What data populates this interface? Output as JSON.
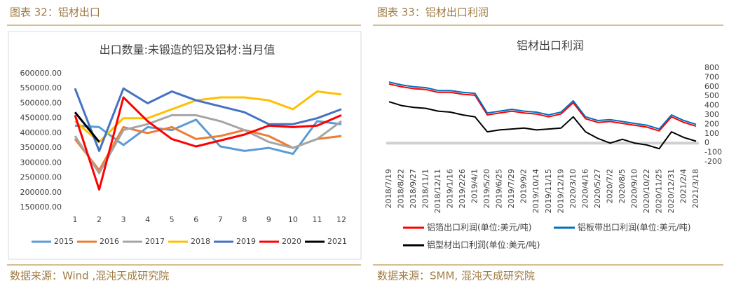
{
  "header_left": "图表 32：铝材出口",
  "header_right": "图表 33：铝材出口利润",
  "source_left": "数据来源：Wind ,混沌天成研究院",
  "source_right": "数据来源：SMM, 混沌天成研究院",
  "chart_data": [
    {
      "type": "line",
      "title": "出口数量:未锻造的铝及铝材:当月值",
      "categories": [
        "1",
        "2",
        "3",
        "4",
        "5",
        "6",
        "7",
        "8",
        "9",
        "10",
        "11",
        "12"
      ],
      "ylim": [
        150000,
        600000
      ],
      "yticks": [
        {
          "value": 150000,
          "label": "150000.00"
        },
        {
          "value": 200000,
          "label": "200000.00"
        },
        {
          "value": 250000,
          "label": "250000.00"
        },
        {
          "value": 300000,
          "label": "300000.00"
        },
        {
          "value": 350000,
          "label": "350000.00"
        },
        {
          "value": 400000,
          "label": "400000.00"
        },
        {
          "value": 450000,
          "label": "450000.00"
        },
        {
          "value": 500000,
          "label": "500000.00"
        },
        {
          "value": 550000,
          "label": "550000.00"
        },
        {
          "value": 600000,
          "label": "600000.00"
        }
      ],
      "grid": false,
      "legend": "bottom",
      "series": [
        {
          "name": "2015",
          "color": "#5b9bd5",
          "values": [
            425000,
            420000,
            360000,
            420000,
            410000,
            445000,
            355000,
            340000,
            350000,
            330000,
            440000,
            430000
          ]
        },
        {
          "name": "2016",
          "color": "#ed7d31",
          "values": [
            380000,
            275000,
            420000,
            400000,
            420000,
            380000,
            390000,
            410000,
            390000,
            350000,
            380000,
            390000
          ]
        },
        {
          "name": "2017",
          "color": "#a5a5a5",
          "values": [
            390000,
            265000,
            410000,
            430000,
            460000,
            460000,
            440000,
            410000,
            370000,
            350000,
            380000,
            440000
          ]
        },
        {
          "name": "2018",
          "color": "#ffc000",
          "values": [
            440000,
            370000,
            450000,
            450000,
            480000,
            510000,
            520000,
            520000,
            510000,
            480000,
            540000,
            530000
          ]
        },
        {
          "name": "2019",
          "color": "#4472c4",
          "values": [
            550000,
            340000,
            550000,
            500000,
            540000,
            510000,
            490000,
            470000,
            430000,
            430000,
            450000,
            480000
          ]
        },
        {
          "name": "2020",
          "color": "#ff0000",
          "values": [
            460000,
            210000,
            520000,
            440000,
            380000,
            355000,
            375000,
            395000,
            425000,
            420000,
            425000,
            460000
          ]
        },
        {
          "name": "2021",
          "color": "#000000",
          "values": [
            470000,
            370000,
            null,
            null,
            null,
            null,
            null,
            null,
            null,
            null,
            null,
            null
          ]
        }
      ]
    },
    {
      "type": "line",
      "title": "铝材出口利润",
      "categories": [
        "2018/7/19",
        "2018/8/22",
        "2018/9/27",
        "2018/11/1",
        "2018/12/11",
        "2019/1/16",
        "2019/2/26",
        "2019/4/1",
        "2019/5/20",
        "2019/6/25",
        "2019/7/29",
        "2019/9/2",
        "2019/10/14",
        "2019/11/15",
        "2019/12/19",
        "2020/3/10",
        "2020/4/16",
        "2020/5/27",
        "2020/7/2",
        "2020/8/5",
        "2020/9/10",
        "2020/10/22",
        "2020/11/25",
        "2020/12/31",
        "2021/2/4",
        "2021/3/18"
      ],
      "ylim": [
        -200,
        800
      ],
      "yticks": [
        -200,
        -100,
        0,
        100,
        200,
        300,
        400,
        500,
        600,
        700,
        800
      ],
      "grid": false,
      "legend": "bottom",
      "series": [
        {
          "name": "铝箔出口利润(单位:美元/吨)",
          "color": "#ff0000",
          "values": [
            630,
            600,
            580,
            570,
            540,
            540,
            520,
            510,
            300,
            320,
            340,
            320,
            310,
            280,
            310,
            430,
            260,
            220,
            230,
            210,
            190,
            170,
            130,
            280,
            220,
            180
          ]
        },
        {
          "name": "铝板带出口利润(单位:美元/吨)",
          "color": "#0070c0",
          "values": [
            650,
            620,
            600,
            590,
            560,
            560,
            540,
            530,
            320,
            340,
            360,
            340,
            330,
            300,
            330,
            450,
            280,
            240,
            250,
            230,
            210,
            190,
            150,
            300,
            240,
            200
          ]
        },
        {
          "name": "铝型材出口利润(单位:美元/吨)",
          "color": "#000000",
          "values": [
            440,
            400,
            380,
            370,
            340,
            330,
            300,
            280,
            120,
            140,
            150,
            160,
            140,
            150,
            160,
            280,
            120,
            50,
            0,
            40,
            0,
            -20,
            -60,
            120,
            60,
            20
          ]
        }
      ]
    }
  ]
}
